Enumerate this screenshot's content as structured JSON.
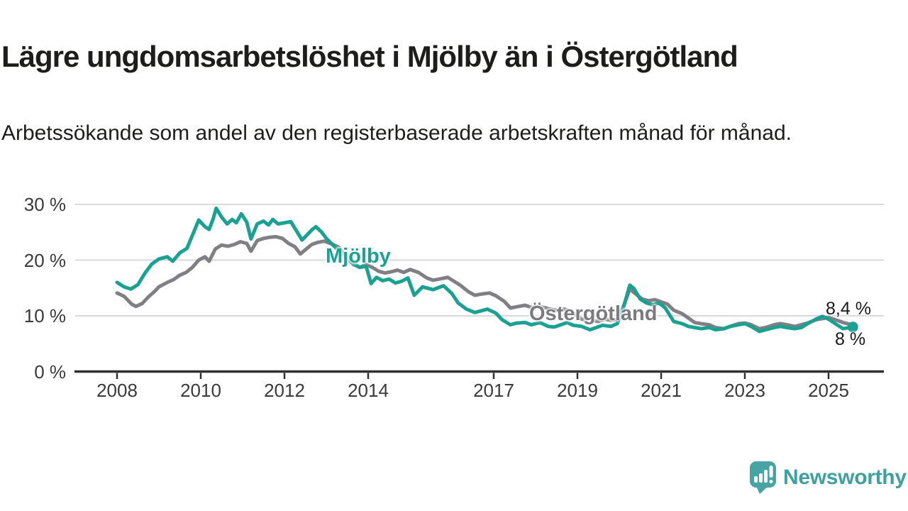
{
  "chart_data": {
    "type": "line",
    "title": "Lägre ungdomsarbetslöshet i Mjölby än i Östergötland",
    "subtitle": "Arbetssökande som andel av den registerbaserade arbetskraften månad för månad.",
    "grid": "horizontal",
    "legend": "inline-labels",
    "x_axis": {
      "range": [
        2007.85,
        2026.35
      ],
      "ticks": [
        2008,
        2010,
        2012,
        2014,
        2017,
        2019,
        2021,
        2023,
        2025
      ],
      "tick_labels": [
        "2008",
        "2010",
        "2012",
        "2014",
        "2017",
        "2019",
        "2021",
        "2023",
        "2025"
      ]
    },
    "y_axis": {
      "unit": "%",
      "range": [
        0,
        31.5
      ],
      "ticks": [
        0,
        10,
        20,
        30
      ],
      "tick_labels": [
        "0 %",
        "10 %",
        "20 %",
        "30 %"
      ]
    },
    "series": [
      {
        "name": "Mjölby",
        "color": "#1aa192",
        "end_value": 8.0,
        "end_label": "8 %",
        "marker_end": true,
        "points": [
          [
            2008,
            16
          ],
          [
            2008.17,
            15.2
          ],
          [
            2008.33,
            14.8
          ],
          [
            2008.5,
            15.6
          ],
          [
            2008.67,
            17.7
          ],
          [
            2008.83,
            19.3
          ],
          [
            2009,
            20.2
          ],
          [
            2009.2,
            20.6
          ],
          [
            2009.33,
            19.8
          ],
          [
            2009.5,
            21.3
          ],
          [
            2009.67,
            22.1
          ],
          [
            2009.83,
            25
          ],
          [
            2009.95,
            27.2
          ],
          [
            2010.1,
            26
          ],
          [
            2010.2,
            25.5
          ],
          [
            2010.3,
            27.5
          ],
          [
            2010.37,
            29.3
          ],
          [
            2010.5,
            27.7
          ],
          [
            2010.63,
            26.5
          ],
          [
            2010.75,
            27.3
          ],
          [
            2010.85,
            26.7
          ],
          [
            2010.97,
            28.3
          ],
          [
            2011.1,
            26.8
          ],
          [
            2011.2,
            23.8
          ],
          [
            2011.35,
            26.5
          ],
          [
            2011.5,
            27
          ],
          [
            2011.62,
            26.3
          ],
          [
            2011.72,
            27.3
          ],
          [
            2011.85,
            26.5
          ],
          [
            2012,
            26.7
          ],
          [
            2012.15,
            26.9
          ],
          [
            2012.3,
            25.1
          ],
          [
            2012.42,
            23.6
          ],
          [
            2012.55,
            24.6
          ],
          [
            2012.65,
            25.4
          ],
          [
            2012.75,
            26
          ],
          [
            2012.88,
            25.1
          ],
          [
            2013,
            23.9
          ],
          [
            2013.2,
            22.4
          ],
          [
            2013.4,
            21
          ],
          [
            2013.6,
            19.6
          ],
          [
            2013.8,
            18.7
          ],
          [
            2013.95,
            18.9
          ],
          [
            2014.07,
            15.8
          ],
          [
            2014.2,
            16.9
          ],
          [
            2014.35,
            16.3
          ],
          [
            2014.5,
            16.6
          ],
          [
            2014.65,
            15.9
          ],
          [
            2014.8,
            16.2
          ],
          [
            2014.95,
            16.8
          ],
          [
            2015.1,
            13.7
          ],
          [
            2015.3,
            15.2
          ],
          [
            2015.55,
            14.7
          ],
          [
            2015.8,
            15.4
          ],
          [
            2016,
            14
          ],
          [
            2016.15,
            12.3
          ],
          [
            2016.35,
            11.2
          ],
          [
            2016.55,
            10.6
          ],
          [
            2016.7,
            10.9
          ],
          [
            2016.85,
            11.2
          ],
          [
            2017.05,
            10.5
          ],
          [
            2017.2,
            9.3
          ],
          [
            2017.4,
            8.4
          ],
          [
            2017.55,
            8.7
          ],
          [
            2017.75,
            8.8
          ],
          [
            2017.9,
            8.4
          ],
          [
            2018.1,
            8.8
          ],
          [
            2018.3,
            8.1
          ],
          [
            2018.45,
            8
          ],
          [
            2018.6,
            8.4
          ],
          [
            2018.75,
            8.8
          ],
          [
            2018.9,
            8.3
          ],
          [
            2019.1,
            8.1
          ],
          [
            2019.3,
            7.5
          ],
          [
            2019.45,
            7.9
          ],
          [
            2019.6,
            8.3
          ],
          [
            2019.8,
            8.1
          ],
          [
            2019.95,
            8.6
          ],
          [
            2020.1,
            11.5
          ],
          [
            2020.25,
            15.5
          ],
          [
            2020.35,
            14.9
          ],
          [
            2020.5,
            13
          ],
          [
            2020.65,
            12.3
          ],
          [
            2020.8,
            12
          ],
          [
            2020.95,
            12.3
          ],
          [
            2021.1,
            11.4
          ],
          [
            2021.3,
            9
          ],
          [
            2021.5,
            8.6
          ],
          [
            2021.65,
            8.1
          ],
          [
            2021.8,
            7.9
          ],
          [
            2021.95,
            7.7
          ],
          [
            2022.15,
            7.9
          ],
          [
            2022.3,
            7.5
          ],
          [
            2022.5,
            7.7
          ],
          [
            2022.65,
            8.1
          ],
          [
            2022.85,
            8.4
          ],
          [
            2023,
            8.6
          ],
          [
            2023.15,
            8.1
          ],
          [
            2023.35,
            7.2
          ],
          [
            2023.5,
            7.5
          ],
          [
            2023.7,
            7.9
          ],
          [
            2023.85,
            8.1
          ],
          [
            2024,
            7.9
          ],
          [
            2024.2,
            7.7
          ],
          [
            2024.35,
            7.9
          ],
          [
            2024.5,
            8.6
          ],
          [
            2024.7,
            9.4
          ],
          [
            2024.85,
            9.9
          ],
          [
            2025,
            9.4
          ],
          [
            2025.2,
            8.4
          ],
          [
            2025.35,
            7.7
          ],
          [
            2025.5,
            7.9
          ],
          [
            2025.58,
            8
          ]
        ]
      },
      {
        "name": "Östergötland",
        "color": "#808084",
        "end_value": 8.4,
        "end_label": "8,4 %",
        "marker_end": false,
        "points": [
          [
            2008,
            14.1
          ],
          [
            2008.17,
            13.5
          ],
          [
            2008.35,
            12.1
          ],
          [
            2008.45,
            11.7
          ],
          [
            2008.6,
            12.2
          ],
          [
            2008.75,
            13.4
          ],
          [
            2008.9,
            14.4
          ],
          [
            2009,
            15.2
          ],
          [
            2009.2,
            16
          ],
          [
            2009.35,
            16.5
          ],
          [
            2009.5,
            17.3
          ],
          [
            2009.65,
            17.8
          ],
          [
            2009.8,
            18.7
          ],
          [
            2009.95,
            20
          ],
          [
            2010.1,
            20.6
          ],
          [
            2010.2,
            19.8
          ],
          [
            2010.35,
            22
          ],
          [
            2010.5,
            22.7
          ],
          [
            2010.65,
            22.5
          ],
          [
            2010.8,
            22.8
          ],
          [
            2010.95,
            23.3
          ],
          [
            2011.1,
            23
          ],
          [
            2011.2,
            21.6
          ],
          [
            2011.35,
            23.5
          ],
          [
            2011.5,
            23.9
          ],
          [
            2011.65,
            24.1
          ],
          [
            2011.8,
            24.2
          ],
          [
            2011.95,
            23.9
          ],
          [
            2012.1,
            23
          ],
          [
            2012.25,
            22.4
          ],
          [
            2012.38,
            21.1
          ],
          [
            2012.52,
            22
          ],
          [
            2012.65,
            22.8
          ],
          [
            2012.8,
            23.2
          ],
          [
            2012.95,
            23.4
          ],
          [
            2013.1,
            23
          ],
          [
            2013.3,
            22.3
          ],
          [
            2013.5,
            20.3
          ],
          [
            2013.65,
            19.2
          ],
          [
            2013.8,
            18.7
          ],
          [
            2013.95,
            19.2
          ],
          [
            2014.1,
            18.7
          ],
          [
            2014.25,
            18
          ],
          [
            2014.4,
            17.7
          ],
          [
            2014.55,
            17.9
          ],
          [
            2014.7,
            18.2
          ],
          [
            2014.85,
            17.8
          ],
          [
            2015,
            18.3
          ],
          [
            2015.2,
            17.8
          ],
          [
            2015.4,
            16.8
          ],
          [
            2015.55,
            16.4
          ],
          [
            2015.7,
            16.6
          ],
          [
            2015.9,
            16.9
          ],
          [
            2016.05,
            16.2
          ],
          [
            2016.2,
            15.5
          ],
          [
            2016.4,
            14.3
          ],
          [
            2016.55,
            13.7
          ],
          [
            2016.7,
            13.9
          ],
          [
            2016.9,
            14.1
          ],
          [
            2017.05,
            13.6
          ],
          [
            2017.25,
            12.6
          ],
          [
            2017.4,
            11.4
          ],
          [
            2017.6,
            11.7
          ],
          [
            2017.75,
            11.9
          ],
          [
            2017.9,
            11.5
          ],
          [
            2018.1,
            11.7
          ],
          [
            2018.3,
            11.3
          ],
          [
            2018.5,
            11
          ],
          [
            2018.7,
            11.2
          ],
          [
            2018.9,
            10.5
          ],
          [
            2019.1,
            9.4
          ],
          [
            2019.3,
            9.2
          ],
          [
            2019.5,
            9
          ],
          [
            2019.65,
            9.4
          ],
          [
            2019.8,
            9.2
          ],
          [
            2019.95,
            9.4
          ],
          [
            2020.1,
            11.7
          ],
          [
            2020.25,
            14.8
          ],
          [
            2020.4,
            13.9
          ],
          [
            2020.55,
            13
          ],
          [
            2020.7,
            12.7
          ],
          [
            2020.85,
            12.9
          ],
          [
            2021,
            12.5
          ],
          [
            2021.15,
            12.1
          ],
          [
            2021.3,
            11
          ],
          [
            2021.5,
            10.4
          ],
          [
            2021.65,
            9.6
          ],
          [
            2021.8,
            8.8
          ],
          [
            2021.95,
            8.6
          ],
          [
            2022.15,
            8.4
          ],
          [
            2022.3,
            7.9
          ],
          [
            2022.5,
            7.7
          ],
          [
            2022.65,
            8.1
          ],
          [
            2022.85,
            8.6
          ],
          [
            2023,
            8.7
          ],
          [
            2023.15,
            8.4
          ],
          [
            2023.35,
            7.7
          ],
          [
            2023.5,
            7.9
          ],
          [
            2023.7,
            8.4
          ],
          [
            2023.85,
            8.6
          ],
          [
            2024,
            8.4
          ],
          [
            2024.2,
            8.1
          ],
          [
            2024.35,
            8.4
          ],
          [
            2024.5,
            8.7
          ],
          [
            2024.7,
            9.3
          ],
          [
            2024.85,
            9.5
          ],
          [
            2025,
            9.7
          ],
          [
            2025.2,
            9.2
          ],
          [
            2025.35,
            8.8
          ],
          [
            2025.5,
            8.5
          ],
          [
            2025.58,
            8.4
          ]
        ]
      }
    ],
    "colors": {
      "axis": "#303030",
      "gridline": "#d9d9d9",
      "tick_text": "#3a3a3a"
    }
  },
  "branding": {
    "logo_text": "Newsworthy",
    "logo_color": "#46a5a2",
    "text_color": "#3da19d"
  }
}
